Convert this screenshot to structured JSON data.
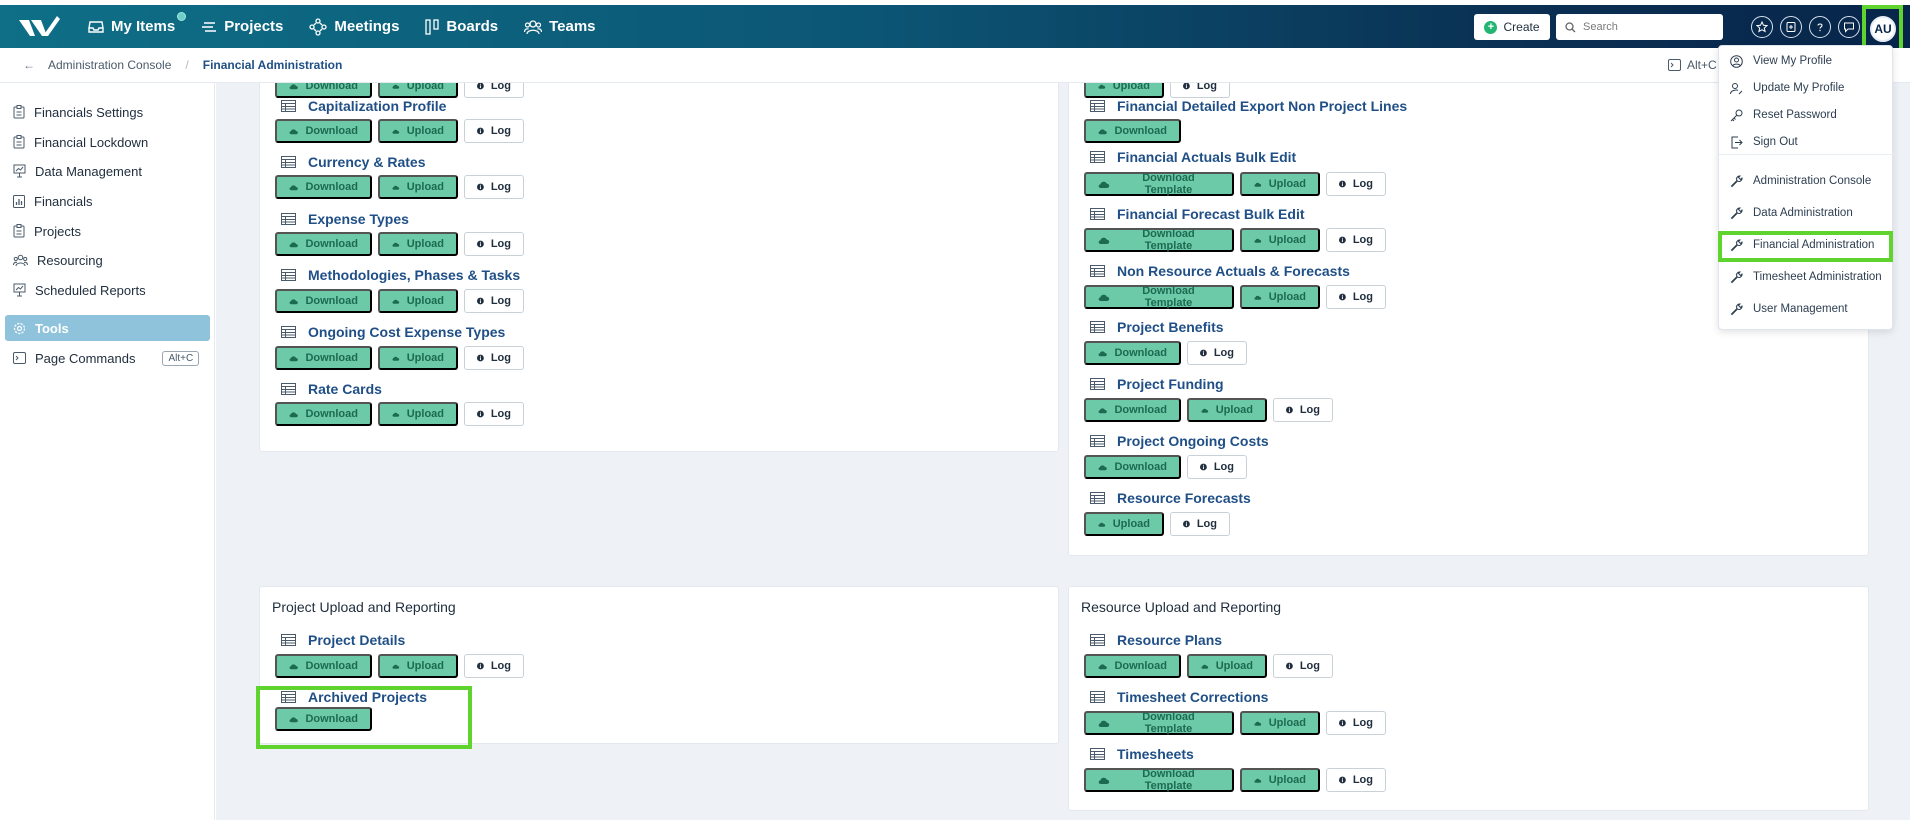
{
  "nav": {
    "items": [
      {
        "label": "My Items",
        "icon": "inbox-icon"
      },
      {
        "label": "Projects",
        "icon": "projects-icon"
      },
      {
        "label": "Meetings",
        "icon": "meetings-icon"
      },
      {
        "label": "Boards",
        "icon": "boards-icon"
      },
      {
        "label": "Teams",
        "icon": "teams-icon"
      }
    ],
    "create_label": "Create",
    "search_placeholder": "Search",
    "avatar_initials": "AU"
  },
  "breadcrumb": {
    "items": [
      "Administration Console",
      "Financial Administration"
    ],
    "page_cmd_hint": "Alt+C"
  },
  "sidebar": {
    "items": [
      {
        "label": "Financials Settings"
      },
      {
        "label": "Financial Lockdown"
      },
      {
        "label": "Data Management"
      },
      {
        "label": "Financials"
      },
      {
        "label": "Projects"
      },
      {
        "label": "Resourcing"
      },
      {
        "label": "Scheduled Reports"
      },
      {
        "label": "Tools"
      },
      {
        "label": "Page Commands",
        "kbd": "Alt+C"
      }
    ]
  },
  "buttons": {
    "download": "Download",
    "upload": "Upload",
    "log": "Log",
    "download_template": "Download Template"
  },
  "left_top_card": {
    "items": [
      "Capitalization Profile",
      "Currency & Rates",
      "Expense Types",
      "Methodologies, Phases & Tasks",
      "Ongoing Cost Expense Types",
      "Rate Cards"
    ]
  },
  "right_top_card": {
    "items": [
      "Financial Detailed Export Non Project Lines",
      "Financial Actuals Bulk Edit",
      "Financial Forecast Bulk Edit",
      "Non Resource Actuals & Forecasts",
      "Project Benefits",
      "Project Funding",
      "Project Ongoing Costs",
      "Resource Forecasts"
    ]
  },
  "project_card": {
    "title": "Project Upload and Reporting",
    "items": [
      "Project Details",
      "Archived Projects"
    ]
  },
  "resource_card": {
    "title": "Resource Upload and Reporting",
    "items": [
      "Resource Plans",
      "Timesheet Corrections",
      "Timesheets"
    ]
  },
  "dropdown": {
    "items": [
      "View My Profile",
      "Update My Profile",
      "Reset Password",
      "Sign Out",
      "Administration Console",
      "Data Administration",
      "Financial Administration",
      "Timesheet Administration",
      "User Management"
    ]
  },
  "colors": {
    "highlight": "#5fd32e",
    "button_green": "#6ccaa8",
    "nav_start": "#0e6f86",
    "nav_end": "#07254a"
  }
}
